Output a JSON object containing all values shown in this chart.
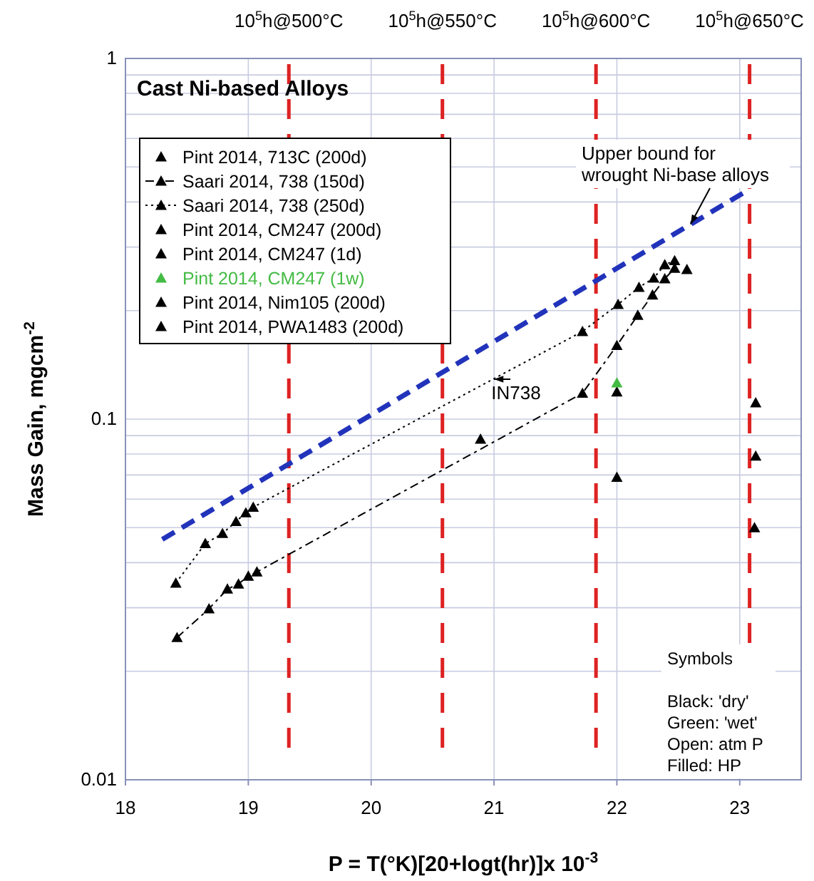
{
  "chart_data": {
    "type": "scatter",
    "title": "Cast Ni-based Alloys",
    "xlabel": "P = T(°K)[20+logt(hr)]x 10$^{-3}$",
    "ylabel": "Mass Gain, mgcm$^{-2}$",
    "xlim": [
      18,
      23.5
    ],
    "xticks": [
      18,
      19,
      20,
      21,
      22,
      23
    ],
    "ylim": [
      0.01,
      1
    ],
    "log": "y",
    "yticks": [
      0.01,
      {
        "value": 0.02,
        "label": null
      },
      {
        "value": 0.03,
        "label": null
      },
      {
        "value": 0.04,
        "label": null
      },
      {
        "value": 0.05,
        "label": null
      },
      {
        "value": 0.06,
        "label": null
      },
      {
        "value": 0.07,
        "label": null
      },
      {
        "value": 0.08,
        "label": null
      },
      {
        "value": 0.09,
        "label": null
      },
      0.1,
      {
        "value": 0.2,
        "label": null
      },
      {
        "value": 0.3,
        "label": null
      },
      {
        "value": 0.4,
        "label": null
      },
      {
        "value": 0.5,
        "label": null
      },
      {
        "value": 0.6,
        "label": null
      },
      {
        "value": 0.7,
        "label": null
      },
      {
        "value": 0.8,
        "label": null
      },
      {
        "value": 0.9,
        "label": null
      },
      1
    ],
    "grid": true,
    "legend": "top left",
    "series": [
      {
        "name": "Pint 2014, 713C (200d)",
        "marker": "triangle",
        "color": "#000000",
        "x": [
          22.57
        ],
        "values": [
          0.26
        ]
      },
      {
        "name": "Saari 2014, 738 (150d)",
        "type": "line",
        "marker": "triangle",
        "line_style": "dashed",
        "color": "#000000",
        "x": [
          18.42,
          18.68,
          18.83,
          18.92,
          19.0,
          19.07,
          21.72,
          22.0,
          22.17,
          22.29,
          22.39,
          22.47
        ],
        "values": [
          0.0248,
          0.0298,
          0.0338,
          0.0349,
          0.0367,
          0.0377,
          0.118,
          0.16,
          0.194,
          0.221,
          0.245,
          0.262
        ]
      },
      {
        "name": "Saari 2014, 738 (250d)",
        "type": "line",
        "marker": "triangle",
        "line_style": "dotted",
        "color": "#000000",
        "x": [
          18.41,
          18.65,
          18.79,
          18.9,
          18.98,
          19.04,
          21.72,
          22.01,
          22.18,
          22.3,
          22.39,
          22.47
        ],
        "values": [
          0.0351,
          0.0452,
          0.0482,
          0.052,
          0.055,
          0.057,
          0.175,
          0.208,
          0.232,
          0.246,
          0.268,
          0.275
        ]
      },
      {
        "name": "Pint 2014, CM247 (200d)",
        "marker": "triangle",
        "color": "#000000",
        "x": [
          20.89,
          22.0,
          23.13
        ],
        "values": [
          0.088,
          0.069,
          0.079
        ]
      },
      {
        "name": "Pint 2014, CM247 (1d)",
        "marker": "triangle",
        "color": "#000000",
        "x": [
          22.0
        ],
        "values": [
          0.119
        ]
      },
      {
        "name": "Pint 2014, CM247 (1w)",
        "marker": "triangle",
        "color": "#44bb44",
        "x": [
          22.0
        ],
        "values": [
          0.126
        ]
      },
      {
        "name": "Pint 2014, Nim105 (200d)",
        "marker": "triangle",
        "color": "#000000",
        "x": [
          23.12
        ],
        "values": [
          0.05
        ]
      },
      {
        "name": "Pint 2014, PWA1483 (200d)",
        "marker": "triangle",
        "color": "#000000",
        "x": [
          23.13
        ],
        "values": [
          0.111
        ]
      },
      {
        "type": "line",
        "marker": "none",
        "line_style": "dashed",
        "color": "#2233bb",
        "x": [
          18.3,
          23.07
        ],
        "values": [
          0.0464,
          0.432
        ]
      }
    ],
    "ref_lines": [
      {
        "axis": "x",
        "value": 19.33,
        "label": "10$^{5}$h@500°C",
        "color": "#dd2222",
        "line_style": "dashed"
      },
      {
        "axis": "x",
        "value": 20.58,
        "label": "10$^{5}$h@550°C",
        "color": "#dd2222",
        "line_style": "dashed"
      },
      {
        "axis": "x",
        "value": 21.83,
        "label": "10$^{5}$h@600°C",
        "color": "#dd2222",
        "line_style": "dashed"
      },
      {
        "axis": "x",
        "value": 23.08,
        "label": "10$^{5}$h@650°C",
        "color": "#dd2222",
        "line_style": "dashed"
      }
    ],
    "annotations": [
      {
        "text": "Upper bound for\nwrought Ni-base alloys",
        "x": 22.6,
        "y": 0.347
      },
      {
        "text": "IN738",
        "x": 21.0,
        "y": 0.129
      },
      "Symbols\n\nBlack: 'dry'\nGreen: 'wet'\nOpen: atm P\nFilled: HP"
    ]
  }
}
